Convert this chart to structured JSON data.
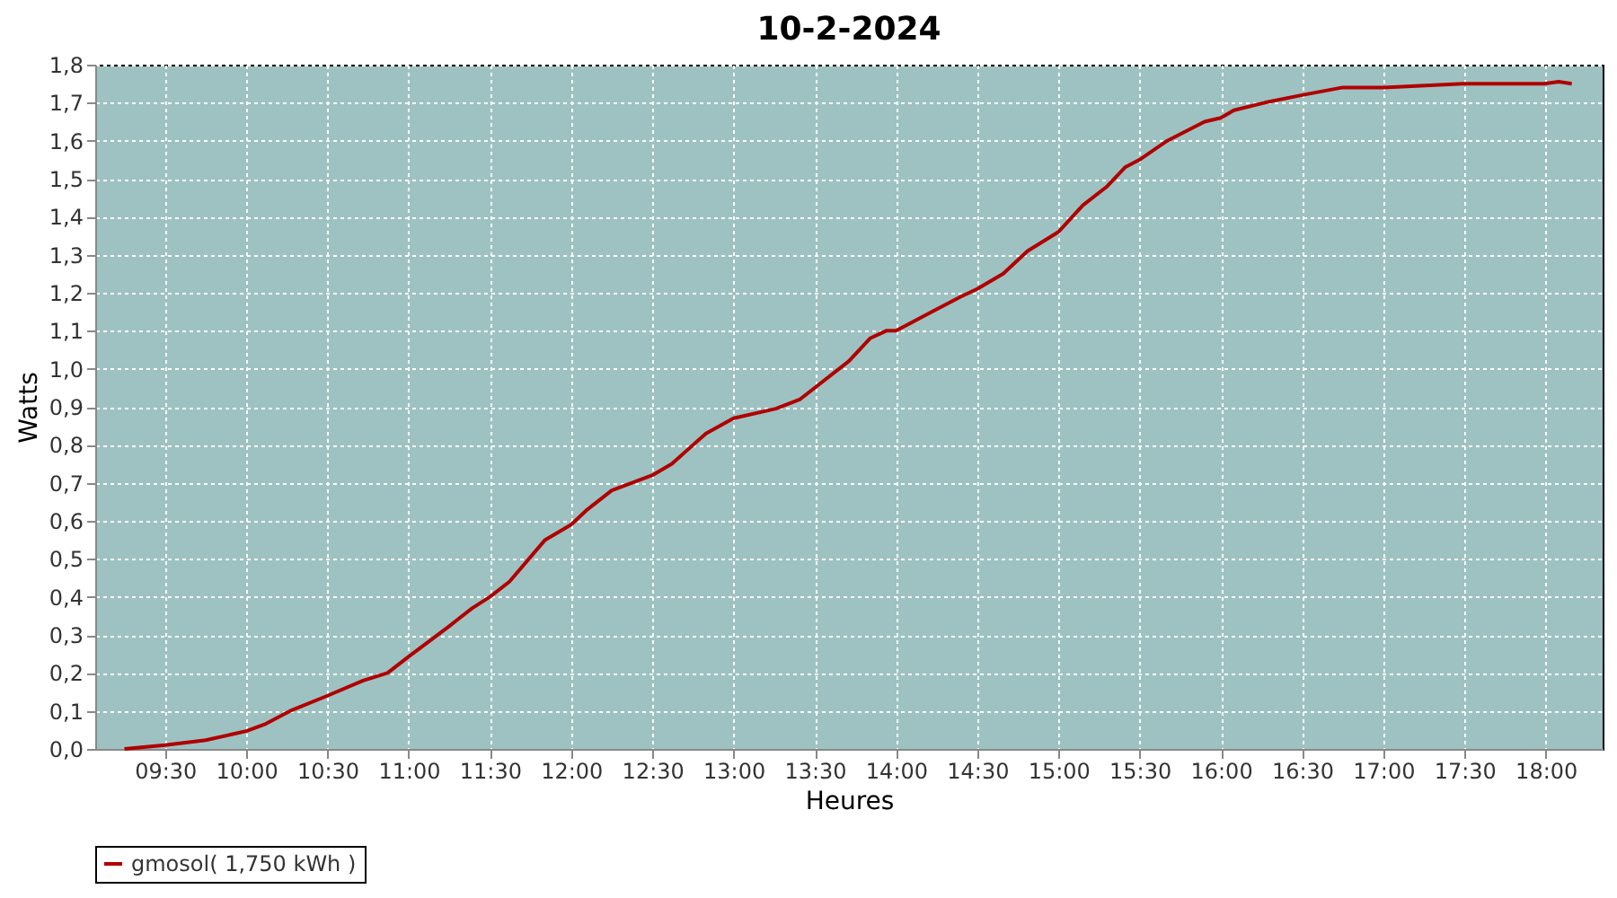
{
  "chart_data": {
    "type": "line",
    "title": "10-2-2024",
    "xlabel": "Heures",
    "ylabel": "Watts",
    "x": [
      9.25,
      9.5,
      9.75,
      10.0,
      10.12,
      10.27,
      10.5,
      10.72,
      10.87,
      11.0,
      11.24,
      11.39,
      11.5,
      11.62,
      11.84,
      12.0,
      12.1,
      12.25,
      12.5,
      12.62,
      12.83,
      13.0,
      13.26,
      13.41,
      13.71,
      13.84,
      13.94,
      14.0,
      14.22,
      14.4,
      14.5,
      14.66,
      14.81,
      15.0,
      15.15,
      15.3,
      15.41,
      15.5,
      15.67,
      15.9,
      16.0,
      16.08,
      16.27,
      16.5,
      16.75,
      17.0,
      17.49,
      17.99,
      18.08,
      18.16
    ],
    "series": [
      {
        "name": "gmosol( 1,750 kWh )",
        "color": "#b00000",
        "values": [
          0.0,
          0.01,
          0.023,
          0.047,
          0.066,
          0.1,
          0.14,
          0.18,
          0.2,
          0.243,
          0.32,
          0.37,
          0.4,
          0.44,
          0.55,
          0.59,
          0.63,
          0.68,
          0.72,
          0.75,
          0.83,
          0.87,
          0.895,
          0.92,
          1.02,
          1.08,
          1.1,
          1.1,
          1.15,
          1.19,
          1.21,
          1.25,
          1.31,
          1.36,
          1.43,
          1.48,
          1.53,
          1.55,
          1.6,
          1.65,
          1.66,
          1.68,
          1.7,
          1.72,
          1.74,
          1.74,
          1.75,
          1.75,
          1.755,
          1.75
        ]
      }
    ],
    "xlim": [
      9.07,
      18.35
    ],
    "xticks": [
      {
        "value": 9.5,
        "label": "09:30"
      },
      {
        "value": 10,
        "label": "10:00"
      },
      {
        "value": 10.5,
        "label": "10:30"
      },
      {
        "value": 11,
        "label": "11:00"
      },
      {
        "value": 11.5,
        "label": "11:30"
      },
      {
        "value": 12,
        "label": "12:00"
      },
      {
        "value": 12.5,
        "label": "12:30"
      },
      {
        "value": 13,
        "label": "13:00"
      },
      {
        "value": 13.5,
        "label": "13:30"
      },
      {
        "value": 14,
        "label": "14:00"
      },
      {
        "value": 14.5,
        "label": "14:30"
      },
      {
        "value": 15,
        "label": "15:00"
      },
      {
        "value": 15.5,
        "label": "15:30"
      },
      {
        "value": 16,
        "label": "16:00"
      },
      {
        "value": 16.5,
        "label": "16:30"
      },
      {
        "value": 17,
        "label": "17:00"
      },
      {
        "value": 17.5,
        "label": "17:30"
      },
      {
        "value": 18,
        "label": "18:00"
      }
    ],
    "ylim": [
      0,
      1.8
    ],
    "yticks": [
      {
        "value": 0,
        "label": "0,0"
      },
      {
        "value": 0.1,
        "label": "0,1"
      },
      {
        "value": 0.2,
        "label": "0,2"
      },
      {
        "value": 0.3,
        "label": "0,3"
      },
      {
        "value": 0.4,
        "label": "0,4"
      },
      {
        "value": 0.5,
        "label": "0,5"
      },
      {
        "value": 0.6,
        "label": "0,6"
      },
      {
        "value": 0.7,
        "label": "0,7"
      },
      {
        "value": 0.8,
        "label": "0,8"
      },
      {
        "value": 0.9,
        "label": "0,9"
      },
      {
        "value": 1.0,
        "label": "1,0"
      },
      {
        "value": 1.1,
        "label": "1,1"
      },
      {
        "value": 1.2,
        "label": "1,2"
      },
      {
        "value": 1.3,
        "label": "1,3"
      },
      {
        "value": 1.4,
        "label": "1,4"
      },
      {
        "value": 1.5,
        "label": "1,5"
      },
      {
        "value": 1.6,
        "label": "1,6"
      },
      {
        "value": 1.7,
        "label": "1,7"
      },
      {
        "value": 1.8,
        "label": "1,8"
      }
    ],
    "grid": true,
    "legend": "bottom",
    "marker": "none",
    "line_style": "solid"
  }
}
